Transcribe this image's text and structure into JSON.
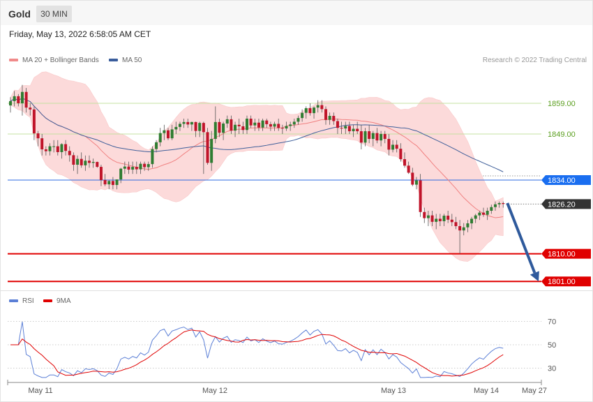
{
  "header": {
    "instrument": "Gold",
    "timeframe": "30 MIN"
  },
  "datetime": "Friday, May 13, 2022 6:58:05 AM CET",
  "legend": [
    {
      "label": "MA 20 + Bollinger Bands",
      "color": "#f08a8a"
    },
    {
      "label": "MA 50",
      "color": "#3a5d9c"
    }
  ],
  "credit": "Research © 2022 Trading Central",
  "rsi_legend": [
    {
      "label": "RSI",
      "color": "#5b7fd6"
    },
    {
      "label": "9MA",
      "color": "#e00000"
    }
  ],
  "colors": {
    "up": "#2f7d32",
    "down": "#c0142a",
    "band": "#fcdada",
    "ma20": "#f08080",
    "ma50": "#3f5f9a",
    "rsi": "#5b7fd6",
    "rsi_ma": "#e00000",
    "arrow": "#2f5a9c"
  },
  "chart_data": [
    {
      "type": "candlestick",
      "y_range": [
        1796,
        1867
      ],
      "levels": [
        {
          "label": "1859.00",
          "value": 1859.0,
          "kind": "resistance"
        },
        {
          "label": "1849.00",
          "value": 1849.0,
          "kind": "resistance"
        },
        {
          "label": "1834.00",
          "value": 1834.0,
          "kind": "pivot"
        },
        {
          "label": "1826.20",
          "value": 1826.2,
          "kind": "last"
        },
        {
          "label": "1810.00",
          "value": 1810.0,
          "kind": "support"
        },
        {
          "label": "1801.00",
          "value": 1801.0,
          "kind": "support"
        }
      ],
      "x_labels": [
        "May 11",
        "May 12",
        "May 13",
        "May 14",
        "May 27"
      ],
      "forecast_arrow": {
        "from": 1826.5,
        "to": 1801.0
      },
      "series": [
        {
          "name": "MA 20 + Bollinger Bands"
        },
        {
          "name": "MA 50"
        }
      ],
      "candles": [
        [
          1858.3,
          1861,
          1856,
          1859.7
        ],
        [
          1859.7,
          1863,
          1858,
          1861.3
        ],
        [
          1861.3,
          1862,
          1858,
          1859.0
        ],
        [
          1859.0,
          1865,
          1855,
          1862.7
        ],
        [
          1862.7,
          1864,
          1856,
          1857.6
        ],
        [
          1857.6,
          1859,
          1855,
          1857.0
        ],
        [
          1857.0,
          1858,
          1847,
          1849.2
        ],
        [
          1849.2,
          1850,
          1845,
          1847.6
        ],
        [
          1847.6,
          1849,
          1842,
          1844.0
        ],
        [
          1844.0,
          1845,
          1842,
          1843.4
        ],
        [
          1843.4,
          1846,
          1842,
          1845.0
        ],
        [
          1845.0,
          1847,
          1843,
          1845.0
        ],
        [
          1845.0,
          1847,
          1842,
          1843.1
        ],
        [
          1843.1,
          1846,
          1841,
          1845.7
        ],
        [
          1845.7,
          1847,
          1842,
          1843.5
        ],
        [
          1843.5,
          1845,
          1840,
          1842.1
        ],
        [
          1842.1,
          1843,
          1837,
          1839.0
        ],
        [
          1839.0,
          1842,
          1836,
          1840.9
        ],
        [
          1840.9,
          1843,
          1838,
          1838.8
        ],
        [
          1838.8,
          1842,
          1837,
          1840.3
        ],
        [
          1840.3,
          1842,
          1838,
          1839.6
        ],
        [
          1839.6,
          1841,
          1838,
          1839.9
        ],
        [
          1839.9,
          1840,
          1838,
          1838.3
        ],
        [
          1838.3,
          1839,
          1832,
          1834.0
        ],
        [
          1834.0,
          1836,
          1832,
          1832.6
        ],
        [
          1832.6,
          1834,
          1831,
          1833.7
        ],
        [
          1833.7,
          1835,
          1831,
          1832.4
        ],
        [
          1832.4,
          1834,
          1831,
          1834.2
        ],
        [
          1834.2,
          1838,
          1833,
          1837.7
        ],
        [
          1837.7,
          1840,
          1836,
          1838.4
        ],
        [
          1838.4,
          1840,
          1836,
          1837.4
        ],
        [
          1837.4,
          1840,
          1836,
          1838.3
        ],
        [
          1838.3,
          1840,
          1836,
          1837.5
        ],
        [
          1837.5,
          1840,
          1836,
          1839.3
        ],
        [
          1839.3,
          1840,
          1837,
          1838.2
        ],
        [
          1838.2,
          1840,
          1837,
          1839.2
        ],
        [
          1839.2,
          1845,
          1838,
          1844.1
        ],
        [
          1844.1,
          1847,
          1843,
          1846.3
        ],
        [
          1846.3,
          1851,
          1845,
          1849.3
        ],
        [
          1849.3,
          1852,
          1847,
          1850.2
        ],
        [
          1850.2,
          1851,
          1847,
          1847.6
        ],
        [
          1847.6,
          1852,
          1847,
          1850.5
        ],
        [
          1850.5,
          1853,
          1849,
          1851.3
        ],
        [
          1851.3,
          1853,
          1850,
          1852.3
        ],
        [
          1852.3,
          1854,
          1851,
          1852.9
        ],
        [
          1852.9,
          1854,
          1851,
          1852.1
        ],
        [
          1852.1,
          1853,
          1850,
          1852.9
        ],
        [
          1852.9,
          1853,
          1848,
          1850.0
        ],
        [
          1850.0,
          1853,
          1848,
          1852.6
        ],
        [
          1852.6,
          1853,
          1836,
          1849.6
        ],
        [
          1849.6,
          1851,
          1839,
          1839.6
        ],
        [
          1839.6,
          1850,
          1837,
          1847.4
        ],
        [
          1847.4,
          1858,
          1846,
          1852.9
        ],
        [
          1852.9,
          1854,
          1848,
          1849.4
        ],
        [
          1849.4,
          1853,
          1847,
          1852.4
        ],
        [
          1852.4,
          1855,
          1851,
          1853.8
        ],
        [
          1853.8,
          1855,
          1849,
          1850.1
        ],
        [
          1850.1,
          1853,
          1848,
          1852.0
        ],
        [
          1852.0,
          1854,
          1849,
          1851.5
        ],
        [
          1851.5,
          1853,
          1849,
          1850.3
        ],
        [
          1850.3,
          1855,
          1849,
          1854.0
        ],
        [
          1854.0,
          1855,
          1851,
          1851.8
        ],
        [
          1851.8,
          1854,
          1850,
          1852.7
        ],
        [
          1852.7,
          1854,
          1850,
          1851.1
        ],
        [
          1851.1,
          1854,
          1850,
          1853.4
        ],
        [
          1853.4,
          1854,
          1851,
          1852.2
        ],
        [
          1852.2,
          1853,
          1850,
          1851.4
        ],
        [
          1851.4,
          1853,
          1850,
          1852.3
        ],
        [
          1852.3,
          1854,
          1850,
          1851.0
        ],
        [
          1851.0,
          1852,
          1849,
          1850.8
        ],
        [
          1850.8,
          1853,
          1850,
          1851.6
        ],
        [
          1851.6,
          1853,
          1850,
          1852.1
        ],
        [
          1852.1,
          1854,
          1851,
          1853.0
        ],
        [
          1853.0,
          1855,
          1852,
          1854.2
        ],
        [
          1854.2,
          1857,
          1853,
          1855.9
        ],
        [
          1855.9,
          1858,
          1854,
          1857.4
        ],
        [
          1857.4,
          1859,
          1855,
          1855.8
        ],
        [
          1855.8,
          1858,
          1854,
          1857.6
        ],
        [
          1857.6,
          1860,
          1856,
          1858.4
        ],
        [
          1858.4,
          1860,
          1856,
          1857.1
        ],
        [
          1857.1,
          1858,
          1852,
          1853.6
        ],
        [
          1853.6,
          1856,
          1852,
          1854.9
        ],
        [
          1854.9,
          1856,
          1852,
          1853.2
        ],
        [
          1853.2,
          1854,
          1849,
          1851.0
        ],
        [
          1851.0,
          1853,
          1849,
          1850.8
        ],
        [
          1850.8,
          1853,
          1849,
          1851.6
        ],
        [
          1851.6,
          1853,
          1849,
          1849.9
        ],
        [
          1849.9,
          1852,
          1848,
          1850.7
        ],
        [
          1850.7,
          1853,
          1849,
          1849.9
        ],
        [
          1849.9,
          1852,
          1844,
          1846.2
        ],
        [
          1846.2,
          1851,
          1845,
          1849.9
        ],
        [
          1849.9,
          1852,
          1846,
          1847.4
        ],
        [
          1847.4,
          1850,
          1845,
          1849.3
        ],
        [
          1849.3,
          1851,
          1846,
          1846.9
        ],
        [
          1846.9,
          1850,
          1845,
          1849.0
        ],
        [
          1849.0,
          1850,
          1846,
          1847.4
        ],
        [
          1847.4,
          1849,
          1842,
          1843.9
        ],
        [
          1843.9,
          1847,
          1843,
          1845.5
        ],
        [
          1845.5,
          1847,
          1843,
          1844.2
        ],
        [
          1844.2,
          1846,
          1840,
          1840.8
        ],
        [
          1840.8,
          1843,
          1838,
          1838.7
        ],
        [
          1838.7,
          1840,
          1836,
          1836.4
        ],
        [
          1836.4,
          1838,
          1832,
          1832.5
        ],
        [
          1832.5,
          1835,
          1831,
          1833.9
        ],
        [
          1833.9,
          1836,
          1822,
          1823.6
        ],
        [
          1823.6,
          1825,
          1820,
          1821.6
        ],
        [
          1821.6,
          1824,
          1819,
          1822.5
        ],
        [
          1822.5,
          1824,
          1819,
          1820.4
        ],
        [
          1820.4,
          1823,
          1818,
          1821.4
        ],
        [
          1821.4,
          1823,
          1819,
          1820.6
        ],
        [
          1820.6,
          1823,
          1819,
          1822.4
        ],
        [
          1822.4,
          1824,
          1820,
          1821.1
        ],
        [
          1821.1,
          1823,
          1819,
          1820.3
        ],
        [
          1820.3,
          1822,
          1818,
          1819.0
        ],
        [
          1819.0,
          1821,
          1810,
          1817.6
        ],
        [
          1817.6,
          1820,
          1816,
          1818.6
        ],
        [
          1818.6,
          1821,
          1817,
          1819.9
        ],
        [
          1819.9,
          1822,
          1818,
          1821.4
        ],
        [
          1821.4,
          1823,
          1820,
          1822.5
        ],
        [
          1822.5,
          1824,
          1821,
          1823.4
        ],
        [
          1823.4,
          1825,
          1822,
          1822.7
        ],
        [
          1822.7,
          1825,
          1821,
          1824.0
        ],
        [
          1824.0,
          1826,
          1823,
          1825.2
        ],
        [
          1825.2,
          1827,
          1824,
          1826.1
        ],
        [
          1826.1,
          1827,
          1825,
          1826.5
        ],
        [
          1826.5,
          1827,
          1825,
          1826.2
        ]
      ]
    },
    {
      "type": "line",
      "y_range": [
        20,
        80
      ],
      "y_ticks": [
        70,
        50,
        30
      ],
      "series": [
        {
          "name": "RSI"
        },
        {
          "name": "9MA"
        }
      ]
    }
  ]
}
